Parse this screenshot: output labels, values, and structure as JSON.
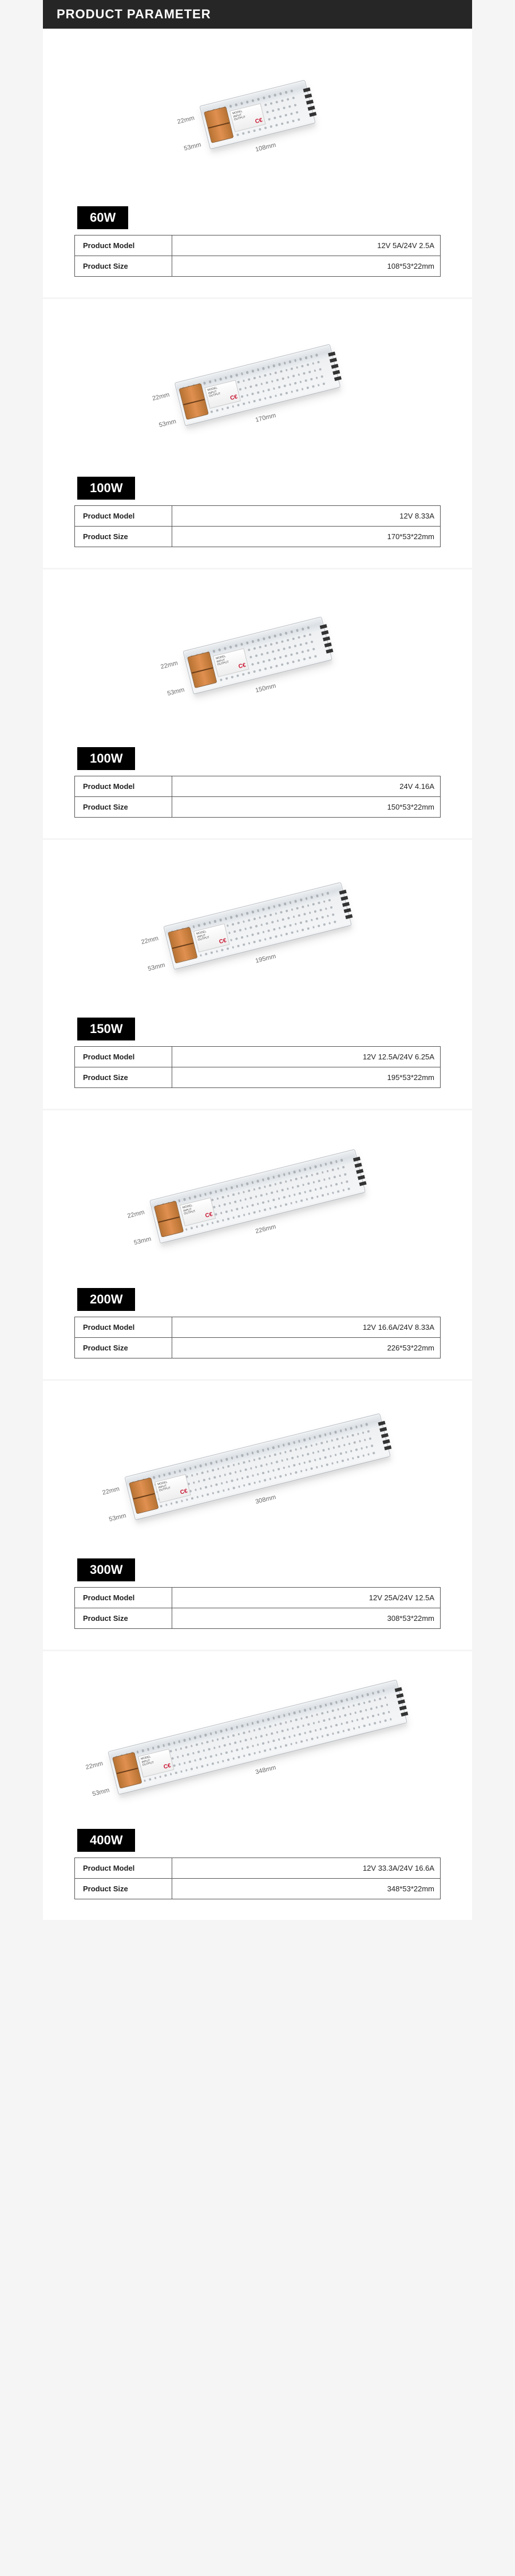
{
  "header": "PRODUCT PARAMETER",
  "labels": {
    "model": "Product Model",
    "size": "Product Size"
  },
  "products": [
    {
      "wattage": "60W",
      "model": "12V 5A/24V 2.5A",
      "size": "108*53*22mm",
      "psu_width": 190,
      "dim_length": "108mm",
      "dim_width": "53mm",
      "dim_height": "22mm",
      "dot_cols": 16
    },
    {
      "wattage": "100W",
      "model": "12V 8.33A",
      "size": "170*53*22mm",
      "psu_width": 280,
      "dim_length": "170mm",
      "dim_width": "53mm",
      "dim_height": "22mm",
      "dot_cols": 26
    },
    {
      "wattage": "100W",
      "model": "24V 4.16A",
      "size": "150*53*22mm",
      "psu_width": 250,
      "dim_length": "150mm",
      "dim_width": "53mm",
      "dim_height": "22mm",
      "dot_cols": 22
    },
    {
      "wattage": "150W",
      "model": "12V 12.5A/24V 6.25A",
      "size": "195*53*22mm",
      "psu_width": 320,
      "dim_length": "195mm",
      "dim_width": "53mm",
      "dim_height": "22mm",
      "dot_cols": 30
    },
    {
      "wattage": "200W",
      "model": "12V 16.6A/24V 8.33A",
      "size": "226*53*22mm",
      "psu_width": 370,
      "dim_length": "226mm",
      "dim_width": "53mm",
      "dim_height": "22mm",
      "dot_cols": 36
    },
    {
      "wattage": "300W",
      "model": "12V 25A/24V 12.5A",
      "size": "308*53*22mm",
      "psu_width": 460,
      "dim_length": "308mm",
      "dim_width": "53mm",
      "dim_height": "22mm",
      "dot_cols": 46
    },
    {
      "wattage": "400W",
      "model": "12V 33.3A/24V 16.6A",
      "size": "348*53*22mm",
      "psu_width": 520,
      "dim_length": "348mm",
      "dim_width": "53mm",
      "dim_height": "22mm",
      "dot_cols": 52
    }
  ]
}
